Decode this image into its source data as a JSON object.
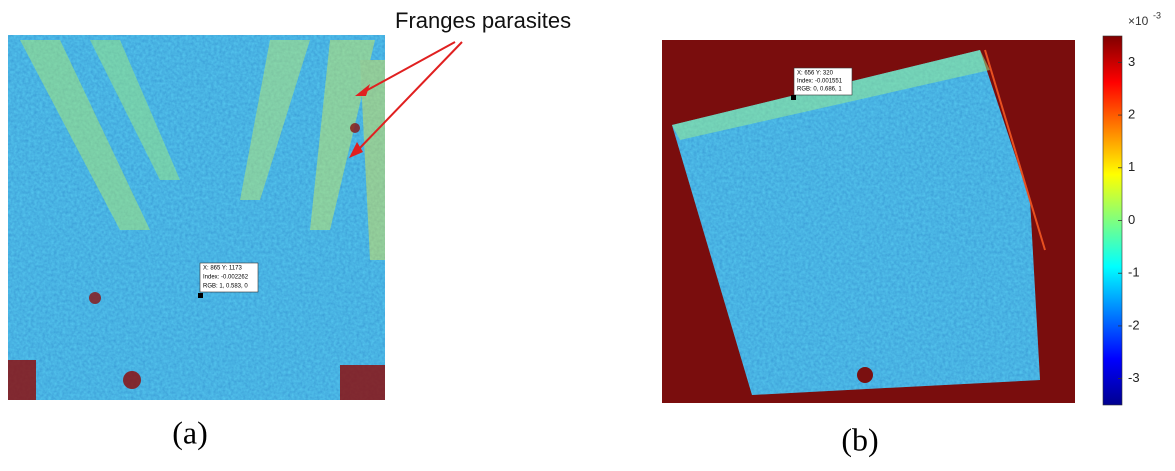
{
  "annotation": "Franges parasites",
  "panels": [
    {
      "label": "(a)",
      "datatip": [
        "X: 865 Y: 1173",
        "Index: -0.002262",
        "RGB: 1, 0.583, 0"
      ]
    },
    {
      "label": "(b)",
      "datatip": [
        "X: 656 Y: 320",
        "Index: -0.001551",
        "RGB: 0, 0.686, 1"
      ]
    }
  ],
  "colorbar": {
    "multiplier": "×10",
    "exponent": "-3",
    "lim": [
      -3.5,
      3.5
    ],
    "ticks": [
      -3,
      -2,
      -1,
      0,
      1,
      2,
      3
    ]
  }
}
